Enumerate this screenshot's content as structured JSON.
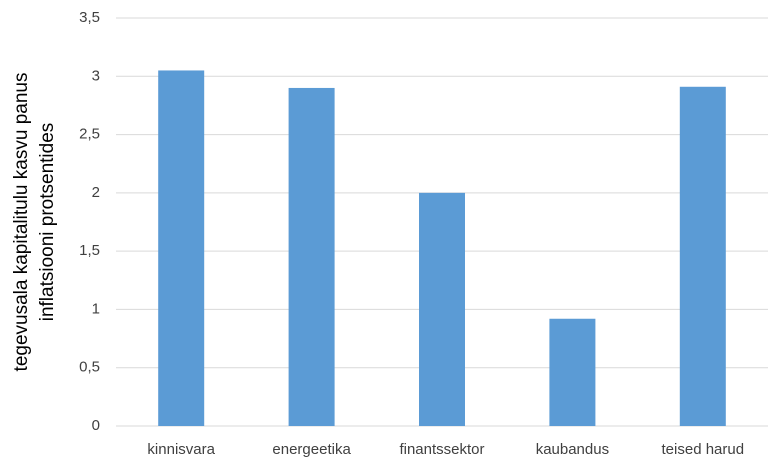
{
  "chart_data": {
    "type": "bar",
    "ylabel": [
      "tegevusala kapitalitulu kasvu panus",
      "inflatsiooni protsentides"
    ],
    "categories": [
      "kinnisvara",
      "energeetika",
      "finantssektor",
      "kaubandus",
      "teised harud"
    ],
    "values": [
      3.05,
      2.9,
      2.0,
      0.92,
      2.91
    ],
    "color": "#5b9bd5",
    "ylim": [
      0,
      3.5
    ],
    "yticks": [
      0,
      {
        "value": 0.5,
        "label": "0,5"
      },
      1,
      {
        "value": 1.5,
        "label": "1,5"
      },
      2,
      {
        "value": 2.5,
        "label": "2,5"
      },
      3,
      {
        "value": 3.5,
        "label": "3,5"
      }
    ],
    "grid": true
  }
}
